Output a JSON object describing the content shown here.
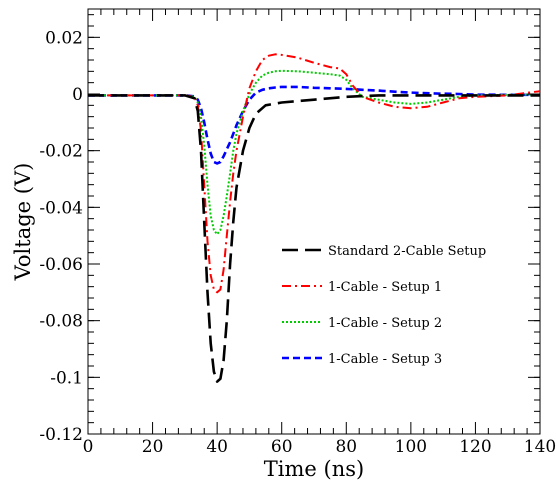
{
  "chart_data": {
    "type": "line",
    "xlabel": "Time (ns)",
    "ylabel": "Voltage (V)",
    "xlim": [
      0,
      140
    ],
    "ylim": [
      -0.12,
      0.03
    ],
    "x_ticks": [
      0,
      20,
      40,
      60,
      80,
      100,
      120,
      140
    ],
    "x_tick_labels": [
      "0",
      "20",
      "40",
      "60",
      "80",
      "100",
      "120",
      "140"
    ],
    "y_ticks": [
      -0.12,
      -0.1,
      -0.08,
      -0.06,
      -0.04,
      -0.02,
      0,
      0.02
    ],
    "y_tick_labels": [
      "-0.12",
      "-0.1",
      "-0.08",
      "-0.06",
      "-0.04",
      "-0.02",
      "0",
      "0.02"
    ],
    "grid": false,
    "legend_position": "right",
    "series": [
      {
        "name": "Standard 2-Cable Setup",
        "color": "#000000",
        "dash": "long-dash",
        "x": [
          0,
          10,
          20,
          30,
          33,
          34,
          35,
          36,
          37,
          38,
          39,
          40,
          41,
          42,
          43,
          44,
          45,
          46,
          48,
          50,
          52,
          55,
          60,
          70,
          80,
          90,
          100,
          110,
          120,
          130,
          140
        ],
        "y": [
          -0.0005,
          -0.0005,
          -0.0005,
          -0.0005,
          -0.0015,
          -0.006,
          -0.02,
          -0.045,
          -0.07,
          -0.088,
          -0.098,
          -0.1015,
          -0.1005,
          -0.094,
          -0.08,
          -0.06,
          -0.045,
          -0.033,
          -0.02,
          -0.012,
          -0.007,
          -0.004,
          -0.003,
          -0.002,
          -0.001,
          -0.0005,
          -0.0005,
          -0.0005,
          -0.0005,
          -0.0005,
          -0.0005
        ]
      },
      {
        "name": "1-Cable - Setup 1",
        "color": "#ff0000",
        "dash": "dash-dot",
        "x": [
          0,
          10,
          20,
          30,
          33,
          34,
          35,
          36,
          37,
          38,
          39,
          40,
          41,
          42,
          43,
          44,
          45,
          46,
          48,
          50,
          52,
          54,
          56,
          58,
          60,
          65,
          70,
          75,
          78,
          80,
          82,
          85,
          90,
          95,
          100,
          105,
          110,
          115,
          120,
          130,
          135,
          140
        ],
        "y": [
          -0.0005,
          -0.0005,
          -0.0005,
          -0.0005,
          -0.001,
          -0.004,
          -0.013,
          -0.032,
          -0.052,
          -0.064,
          -0.069,
          -0.07,
          -0.069,
          -0.062,
          -0.05,
          -0.038,
          -0.028,
          -0.02,
          -0.008,
          0.002,
          0.008,
          0.012,
          0.0135,
          0.014,
          0.0138,
          0.0128,
          0.011,
          0.0095,
          0.009,
          0.007,
          0.003,
          -0.001,
          -0.003,
          -0.0045,
          -0.005,
          -0.0045,
          -0.003,
          -0.0015,
          -0.001,
          -0.0005,
          0.0003,
          0.001
        ]
      },
      {
        "name": "1-Cable - Setup 2",
        "color": "#00cc00",
        "dash": "dotted",
        "x": [
          0,
          10,
          20,
          30,
          33,
          34,
          35,
          36,
          37,
          38,
          39,
          40,
          41,
          42,
          43,
          44,
          45,
          46,
          48,
          50,
          52,
          54,
          56,
          58,
          60,
          65,
          70,
          75,
          78,
          80,
          82,
          85,
          90,
          95,
          100,
          105,
          110,
          115,
          120,
          130,
          140
        ],
        "y": [
          -0.0005,
          -0.0005,
          -0.0005,
          -0.0005,
          -0.001,
          -0.003,
          -0.008,
          -0.018,
          -0.032,
          -0.043,
          -0.048,
          -0.0495,
          -0.048,
          -0.043,
          -0.036,
          -0.028,
          -0.02,
          -0.014,
          -0.006,
          0.0,
          0.004,
          0.0065,
          0.0075,
          0.008,
          0.0082,
          0.008,
          0.0075,
          0.007,
          0.0065,
          0.005,
          0.002,
          -0.001,
          -0.002,
          -0.003,
          -0.0035,
          -0.003,
          -0.002,
          -0.001,
          -0.0005,
          -0.0003,
          -0.0002
        ]
      },
      {
        "name": "1-Cable - Setup 3",
        "color": "#0000ff",
        "dash": "short-dash",
        "x": [
          0,
          10,
          20,
          30,
          33,
          34,
          35,
          36,
          37,
          38,
          39,
          40,
          41,
          42,
          43,
          44,
          45,
          46,
          48,
          50,
          52,
          54,
          56,
          58,
          60,
          65,
          70,
          75,
          80,
          85,
          90,
          95,
          100,
          105,
          110,
          115,
          120,
          130,
          140
        ],
        "y": [
          -0.0005,
          -0.0005,
          -0.0005,
          -0.0005,
          -0.0008,
          -0.002,
          -0.005,
          -0.01,
          -0.016,
          -0.021,
          -0.024,
          -0.0245,
          -0.024,
          -0.022,
          -0.0195,
          -0.017,
          -0.014,
          -0.011,
          -0.006,
          -0.002,
          0.0005,
          0.0015,
          0.002,
          0.0023,
          0.0025,
          0.0025,
          0.0022,
          0.002,
          0.0018,
          0.0015,
          0.0012,
          0.0008,
          0.0005,
          0.0003,
          0.0001,
          0.0,
          -0.0002,
          -0.0003,
          -0.0003
        ]
      }
    ]
  }
}
